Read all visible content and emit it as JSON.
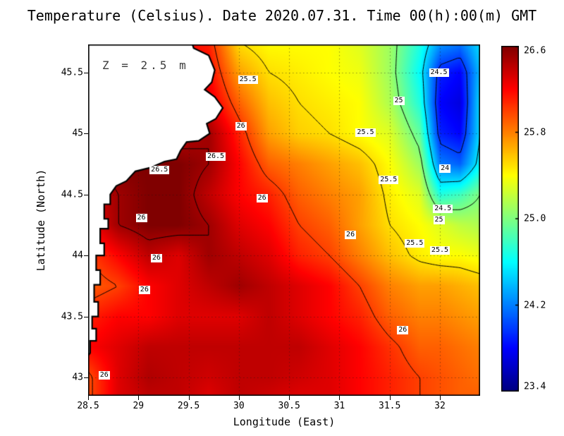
{
  "chart_data": {
    "type": "heatmap",
    "title": "Temperature (Celsius). Date 2020.07.31. Time 00(h):00(m) GMT",
    "annotation": "Z = 2.5 m",
    "xlabel": "Longitude (East)",
    "ylabel": "Latitude (North)",
    "variable": "Temperature (Celsius)",
    "xlim": [
      28.5,
      32.4
    ],
    "ylim": [
      42.85,
      45.73
    ],
    "xticks": [
      28.5,
      29,
      29.5,
      30,
      30.5,
      31,
      31.5,
      32
    ],
    "xtick_labels": [
      "28.5",
      "29",
      "29.5",
      "30",
      "30.5",
      "31",
      "31.5",
      "32"
    ],
    "yticks": [
      43,
      43.5,
      44,
      44.5,
      45,
      45.5
    ],
    "ytick_labels": [
      "43",
      "43.5",
      "44",
      "44.5",
      "45",
      "45.5"
    ],
    "grid": "dotted",
    "colormap": "jet",
    "color_range": [
      23.4,
      26.6
    ],
    "x": [
      28.5,
      28.8,
      29.1,
      29.4,
      29.7,
      30.0,
      30.3,
      30.6,
      30.9,
      31.2,
      31.5,
      31.8,
      32.0,
      32.2,
      32.4
    ],
    "y": [
      45.75,
      45.5,
      45.25,
      45.0,
      44.75,
      44.5,
      44.25,
      44.0,
      43.75,
      43.5,
      43.25,
      43.0,
      42.85
    ],
    "values": [
      [
        26.4,
        26.4,
        26.3,
        26.2,
        26.1,
        25.5,
        25.4,
        25.4,
        25.4,
        25.3,
        25.1,
        24.7,
        24.3,
        24.2,
        24.5
      ],
      [
        26.4,
        26.4,
        26.3,
        26.3,
        26.2,
        25.7,
        25.5,
        25.45,
        25.4,
        25.35,
        25.1,
        24.6,
        23.9,
        23.8,
        24.4
      ],
      [
        26.5,
        26.5,
        26.4,
        26.3,
        26.3,
        25.9,
        25.6,
        25.5,
        25.45,
        25.4,
        25.15,
        24.7,
        23.8,
        23.7,
        24.5
      ],
      [
        26.5,
        26.5,
        26.4,
        26.4,
        26.5,
        26.1,
        25.7,
        25.55,
        25.5,
        25.4,
        25.3,
        24.9,
        23.9,
        23.8,
        24.5
      ],
      [
        26.5,
        26.6,
        26.6,
        26.6,
        26.5,
        26.2,
        25.9,
        25.8,
        25.7,
        25.6,
        25.4,
        25.1,
        24.2,
        24.1,
        24.6
      ],
      [
        26.3,
        26.5,
        26.6,
        26.6,
        26.4,
        26.2,
        26.1,
        25.9,
        25.8,
        25.7,
        25.45,
        25.3,
        24.7,
        24.8,
        25.0
      ],
      [
        26.2,
        26.5,
        26.6,
        26.6,
        26.5,
        26.3,
        26.2,
        26.0,
        25.9,
        25.7,
        25.5,
        25.4,
        25.3,
        25.2,
        25.15
      ],
      [
        26.0,
        26.2,
        26.4,
        26.3,
        26.5,
        26.4,
        26.3,
        26.1,
        26.0,
        25.8,
        25.6,
        25.45,
        25.4,
        25.4,
        25.35
      ],
      [
        25.9,
        26.0,
        26.2,
        26.3,
        26.4,
        26.5,
        26.4,
        26.3,
        26.2,
        26.0,
        25.8,
        25.7,
        25.7,
        25.65,
        25.6
      ],
      [
        26.1,
        26.2,
        26.2,
        26.3,
        26.3,
        26.3,
        26.4,
        26.3,
        26.2,
        26.1,
        25.9,
        25.8,
        25.8,
        25.75,
        25.7
      ],
      [
        26.2,
        26.3,
        26.4,
        26.4,
        26.4,
        26.4,
        26.4,
        26.4,
        26.3,
        26.2,
        26.05,
        25.9,
        25.9,
        25.85,
        25.8
      ],
      [
        25.95,
        26.3,
        26.45,
        26.4,
        26.35,
        26.4,
        26.4,
        26.35,
        26.3,
        26.2,
        26.1,
        26.0,
        25.95,
        25.9,
        25.85
      ],
      [
        25.95,
        26.3,
        26.4,
        26.4,
        26.3,
        26.4,
        26.35,
        26.3,
        26.3,
        26.2,
        26.1,
        26.0,
        25.95,
        25.9,
        25.9
      ]
    ],
    "contour_levels": [
      24,
      24.5,
      25,
      25.5,
      26,
      26.5
    ],
    "contour_labels": [
      {
        "text": "25.5",
        "lon": 30.09,
        "lat": 45.44
      },
      {
        "text": "24.5",
        "lon": 31.99,
        "lat": 45.5
      },
      {
        "text": "25",
        "lon": 31.59,
        "lat": 45.27
      },
      {
        "text": "26",
        "lon": 30.02,
        "lat": 45.06
      },
      {
        "text": "25.5",
        "lon": 31.26,
        "lat": 45.01
      },
      {
        "text": "26.5",
        "lon": 29.77,
        "lat": 44.81
      },
      {
        "text": "26.5",
        "lon": 29.21,
        "lat": 44.7
      },
      {
        "text": "24",
        "lon": 32.05,
        "lat": 44.71
      },
      {
        "text": "25.5",
        "lon": 31.49,
        "lat": 44.62
      },
      {
        "text": "26",
        "lon": 30.23,
        "lat": 44.47
      },
      {
        "text": "24.5",
        "lon": 32.03,
        "lat": 44.38
      },
      {
        "text": "25",
        "lon": 31.99,
        "lat": 44.29
      },
      {
        "text": "26",
        "lon": 29.03,
        "lat": 44.31
      },
      {
        "text": "26",
        "lon": 31.11,
        "lat": 44.17
      },
      {
        "text": "25.5",
        "lon": 31.75,
        "lat": 44.1
      },
      {
        "text": "25.5",
        "lon": 32.0,
        "lat": 44.04
      },
      {
        "text": "26",
        "lon": 29.18,
        "lat": 43.98
      },
      {
        "text": "26",
        "lon": 29.06,
        "lat": 43.72
      },
      {
        "text": "26",
        "lon": 31.63,
        "lat": 43.39
      },
      {
        "text": "26",
        "lon": 28.66,
        "lat": 43.02
      }
    ],
    "coastline": [
      [
        28.5,
        45.78
      ],
      [
        29.52,
        45.78
      ],
      [
        29.55,
        45.7
      ],
      [
        29.7,
        45.64
      ],
      [
        29.76,
        45.52
      ],
      [
        29.73,
        45.42
      ],
      [
        29.66,
        45.36
      ],
      [
        29.76,
        45.3
      ],
      [
        29.84,
        45.21
      ],
      [
        29.77,
        45.12
      ],
      [
        29.68,
        45.08
      ],
      [
        29.71,
        45.0
      ],
      [
        29.6,
        44.94
      ],
      [
        29.48,
        44.93
      ],
      [
        29.42,
        44.86
      ],
      [
        29.38,
        44.79
      ],
      [
        29.26,
        44.77
      ],
      [
        29.12,
        44.72
      ],
      [
        28.97,
        44.69
      ],
      [
        28.88,
        44.61
      ],
      [
        28.78,
        44.57
      ],
      [
        28.72,
        44.5
      ],
      [
        28.72,
        44.42
      ],
      [
        28.66,
        44.42
      ],
      [
        28.66,
        44.3
      ],
      [
        28.7,
        44.3
      ],
      [
        28.7,
        44.22
      ],
      [
        28.62,
        44.22
      ],
      [
        28.62,
        44.1
      ],
      [
        28.66,
        44.1
      ],
      [
        28.66,
        44.0
      ],
      [
        28.58,
        44.0
      ],
      [
        28.58,
        43.88
      ],
      [
        28.62,
        43.88
      ],
      [
        28.62,
        43.76
      ],
      [
        28.56,
        43.76
      ],
      [
        28.56,
        43.62
      ],
      [
        28.6,
        43.62
      ],
      [
        28.6,
        43.5
      ],
      [
        28.54,
        43.5
      ],
      [
        28.54,
        43.4
      ],
      [
        28.58,
        43.4
      ],
      [
        28.58,
        43.3
      ],
      [
        28.52,
        43.3
      ],
      [
        28.52,
        43.2
      ],
      [
        28.5,
        43.18
      ]
    ],
    "colorbar": {
      "min": 23.4,
      "max": 26.6,
      "tick_labels": [
        "26.6",
        "25.8",
        "25.0",
        "24.2",
        "23.4"
      ],
      "tick_values": [
        26.6,
        25.8,
        25.0,
        24.2,
        23.4
      ]
    }
  }
}
